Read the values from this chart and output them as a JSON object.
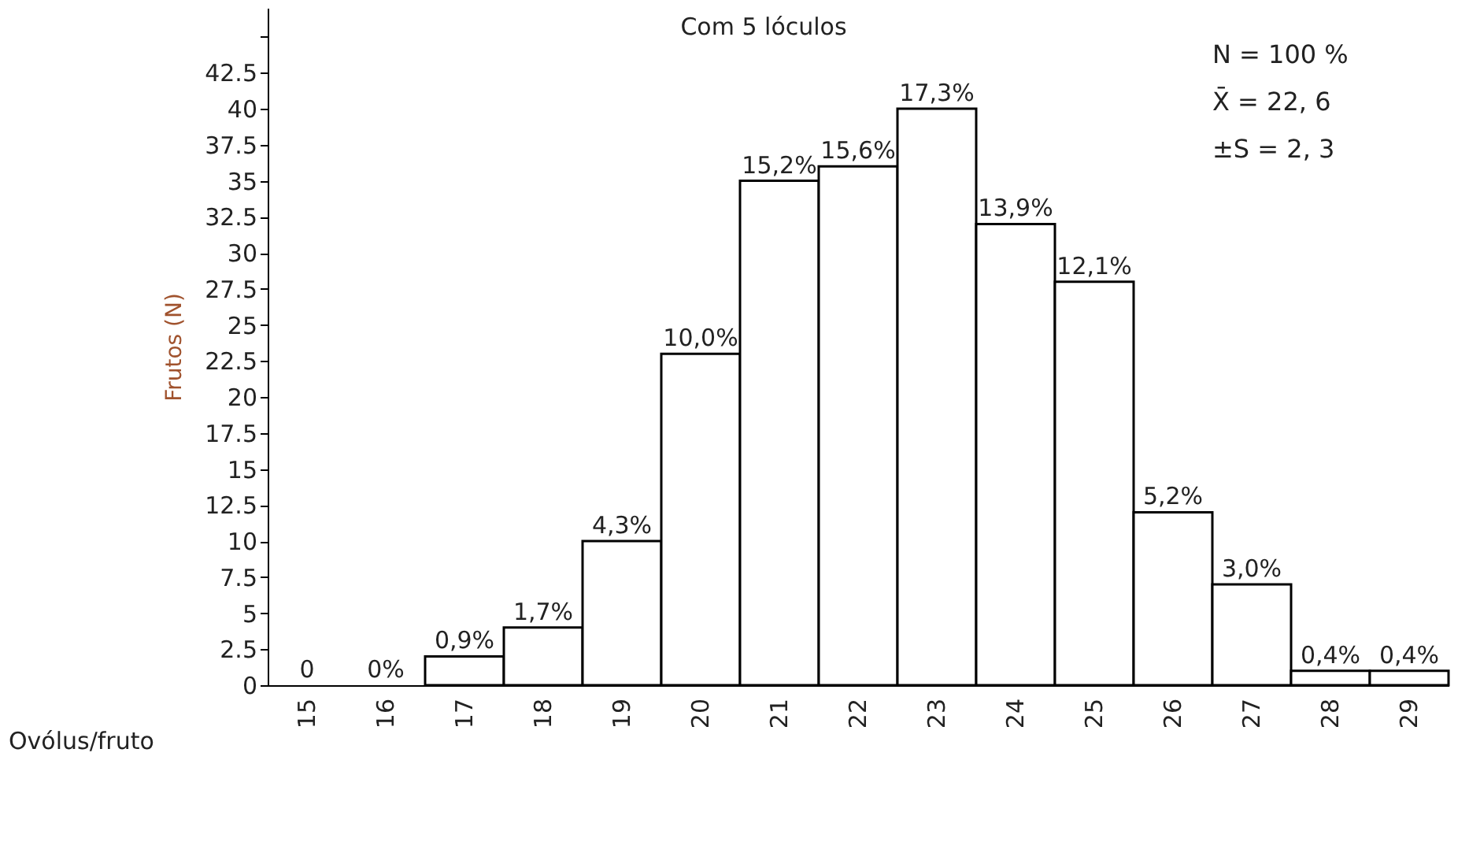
{
  "chart_data": {
    "type": "bar",
    "title": "Com 5 lóculos",
    "xlabel": "Ovólus/fruto",
    "ylabel": "Frutos (N)",
    "categories": [
      "15",
      "16",
      "17",
      "18",
      "19",
      "20",
      "21",
      "22",
      "23",
      "24",
      "25",
      "26",
      "27",
      "28",
      "29"
    ],
    "series": [
      {
        "color": "#ffffff",
        "values": [
          0,
          0,
          2,
          4,
          10,
          23,
          35,
          36,
          40,
          32,
          28,
          12,
          7,
          1,
          1
        ]
      }
    ],
    "ylim": [
      0,
      47
    ],
    "yticks": [
      0,
      2.5,
      5,
      7.5,
      10,
      12.5,
      15,
      17.5,
      20,
      22.5,
      25,
      27.5,
      30,
      32.5,
      35,
      37.5,
      40,
      42.5,
      {
        "value": 45,
        "label": null
      }
    ],
    "annotations": [
      {
        "text": "0",
        "x": "15",
        "y": 0
      },
      {
        "text": "0%",
        "x": "16",
        "y": 0
      },
      {
        "text": "0,9%",
        "x": "17",
        "y": 2
      },
      {
        "text": "1,7%",
        "x": "18",
        "y": 4
      },
      {
        "text": "4,3%",
        "x": "19",
        "y": 10
      },
      {
        "text": "10,0%",
        "x": "20",
        "y": 23
      },
      {
        "text": "15,2%",
        "x": "21",
        "y": 35
      },
      {
        "text": "15,6%",
        "x": "22",
        "y": 36
      },
      {
        "text": "17,3%",
        "x": "23",
        "y": 40
      },
      {
        "text": "13,9%",
        "x": "24",
        "y": 32
      },
      {
        "text": "12,1%",
        "x": "25",
        "y": 28
      },
      {
        "text": "5,2%",
        "x": "26",
        "y": 12
      },
      {
        "text": "3,0%",
        "x": "27",
        "y": 7
      },
      {
        "text": "0,4%",
        "x": "28",
        "y": 1
      },
      {
        "text": "0,4%",
        "x": "29",
        "y": 1
      },
      "N  =  100 %",
      "X̄  =  22, 6",
      "±S  =  2, 3"
    ],
    "grid": false
  }
}
